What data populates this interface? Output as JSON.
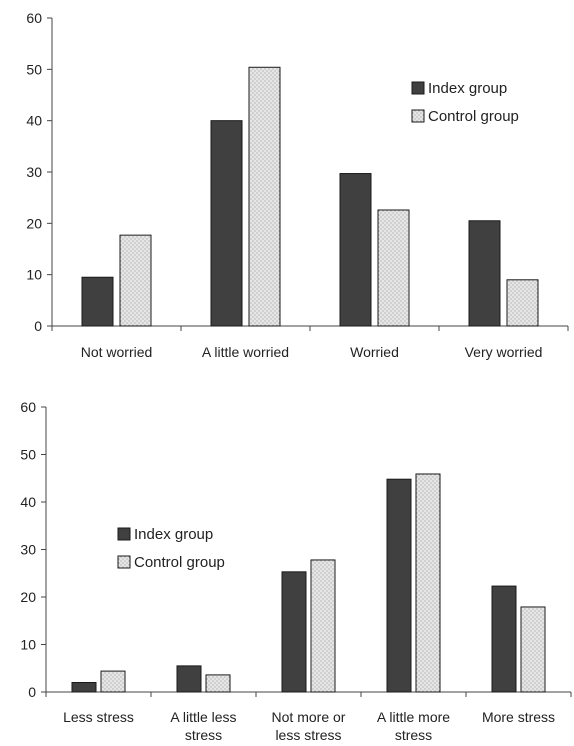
{
  "colors": {
    "index_fill": "#404040",
    "control_fill": "#e6e6e6",
    "control_dot": "#9a9a9a",
    "axis": "#444444",
    "bar_stroke": "#1a1a1a"
  },
  "chart_data": [
    {
      "type": "bar",
      "categories": [
        "Not worried",
        "A little worried",
        "Worried",
        "Very worried"
      ],
      "series": [
        {
          "name": "Index group",
          "values": [
            9.5,
            40,
            29.7,
            20.5
          ]
        },
        {
          "name": "Control group",
          "values": [
            17.7,
            50.4,
            22.6,
            9
          ]
        }
      ],
      "yticks": [
        "0",
        "10",
        "20",
        "30",
        "40",
        "50",
        "60"
      ],
      "ylim": [
        0,
        60
      ],
      "legend_position": "right",
      "title": "",
      "xlabel": "",
      "ylabel": ""
    },
    {
      "type": "bar",
      "categories": [
        "Less stress",
        "A little less stress",
        "Not more or less stress",
        "A little more stress",
        "More stress"
      ],
      "category_lines": [
        [
          "Less stress"
        ],
        [
          "A little less",
          "stress"
        ],
        [
          "Not more or",
          "less stress"
        ],
        [
          "A little more",
          "stress"
        ],
        [
          "More stress"
        ]
      ],
      "series": [
        {
          "name": "Index group",
          "values": [
            2,
            5.5,
            25.3,
            44.8,
            22.3
          ]
        },
        {
          "name": "Control group",
          "values": [
            4.4,
            3.6,
            27.8,
            45.9,
            17.9
          ]
        }
      ],
      "yticks": [
        "0",
        "10",
        "20",
        "30",
        "40",
        "50",
        "60"
      ],
      "ylim": [
        0,
        60
      ],
      "legend_position": "left",
      "title": "",
      "xlabel": "",
      "ylabel": ""
    }
  ]
}
